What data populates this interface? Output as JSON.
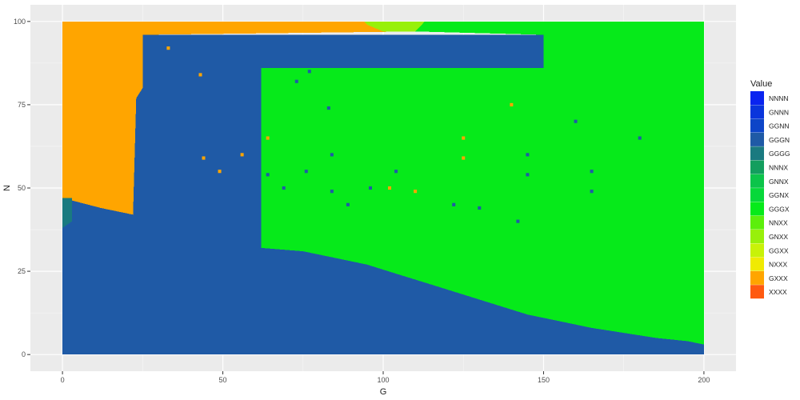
{
  "chart_data": {
    "type": "heatmap",
    "title": "",
    "xlabel": "G",
    "ylabel": "N",
    "xlim": [
      -10,
      210
    ],
    "ylim": [
      -5,
      105
    ],
    "x_ticks": [
      "0",
      "50",
      "100",
      "150",
      "200"
    ],
    "y_ticks": [
      "0",
      "25",
      "50",
      "75",
      "100"
    ],
    "grid": true,
    "legend": {
      "title": "Value",
      "position": "right",
      "entries": [
        {
          "label": "NNNN",
          "color": "#0a24f0"
        },
        {
          "label": "GNNN",
          "color": "#0a35dc"
        },
        {
          "label": "GGNN",
          "color": "#0d45c8"
        },
        {
          "label": "GGGN",
          "color": "#1f5aa6"
        },
        {
          "label": "GGGG",
          "color": "#1a7a80"
        },
        {
          "label": "NNNX",
          "color": "#139e5e"
        },
        {
          "label": "GNNX",
          "color": "#0cc44a"
        },
        {
          "label": "GGNX",
          "color": "#07d83a"
        },
        {
          "label": "GGGX",
          "color": "#06ea1a"
        },
        {
          "label": "NNXX",
          "color": "#5cef0c"
        },
        {
          "label": "GNXX",
          "color": "#98f00a"
        },
        {
          "label": "GGXX",
          "color": "#c8f208"
        },
        {
          "label": "NXXX",
          "color": "#f0ea02"
        },
        {
          "label": "GXXX",
          "color": "#ffa500"
        },
        {
          "label": "XXXX",
          "color": "#ff5a10"
        }
      ]
    },
    "regions": [
      {
        "value": "GGGN",
        "polygon": [
          [
            0,
            0
          ],
          [
            200,
            0
          ],
          [
            200,
            3
          ],
          [
            195,
            4
          ],
          [
            185,
            5
          ],
          [
            175,
            6.5
          ],
          [
            165,
            8
          ],
          [
            155,
            10
          ],
          [
            145,
            12
          ],
          [
            135,
            15
          ],
          [
            125,
            18
          ],
          [
            115,
            21
          ],
          [
            105,
            24
          ],
          [
            95,
            27
          ],
          [
            85,
            29
          ],
          [
            75,
            31
          ],
          [
            62,
            32
          ],
          [
            62,
            86
          ],
          [
            150,
            86
          ],
          [
            150,
            96
          ],
          [
            25,
            96
          ],
          [
            25,
            80
          ],
          [
            23,
            77
          ],
          [
            22,
            42
          ],
          [
            12,
            44
          ],
          [
            0,
            47
          ]
        ]
      },
      {
        "value": "GXXX",
        "polygon": [
          [
            0,
            100
          ],
          [
            95,
            100
          ],
          [
            95,
            99
          ],
          [
            110,
            97
          ],
          [
            25,
            96
          ],
          [
            25,
            80
          ],
          [
            23,
            77
          ],
          [
            22,
            42
          ],
          [
            12,
            44
          ],
          [
            0,
            47
          ]
        ]
      },
      {
        "value": "GGGX",
        "polygon": [
          [
            62,
            32
          ],
          [
            75,
            31
          ],
          [
            85,
            29
          ],
          [
            95,
            27
          ],
          [
            105,
            24
          ],
          [
            115,
            21
          ],
          [
            125,
            18
          ],
          [
            135,
            15
          ],
          [
            145,
            12
          ],
          [
            155,
            10
          ],
          [
            165,
            8
          ],
          [
            175,
            6.5
          ],
          [
            185,
            5
          ],
          [
            195,
            4
          ],
          [
            200,
            3
          ],
          [
            200,
            100
          ],
          [
            113,
            100
          ],
          [
            110,
            97
          ],
          [
            150,
            96
          ],
          [
            150,
            86
          ],
          [
            62,
            86
          ]
        ]
      },
      {
        "value": "GNXX",
        "polygon": [
          [
            94,
            100
          ],
          [
            113,
            100
          ],
          [
            110,
            97
          ],
          [
            100,
            97
          ],
          [
            95,
            99
          ]
        ]
      },
      {
        "value": "GGGG",
        "polygon": [
          [
            0,
            38
          ],
          [
            3,
            40
          ],
          [
            3,
            47
          ],
          [
            0,
            47
          ]
        ]
      }
    ],
    "point_cells": {
      "GGGN": [
        [
          73,
          82
        ],
        [
          77,
          85
        ],
        [
          83,
          74
        ],
        [
          84,
          60
        ],
        [
          76,
          55
        ],
        [
          64,
          54
        ],
        [
          69,
          50
        ],
        [
          84,
          49
        ],
        [
          89,
          45
        ],
        [
          96,
          50
        ],
        [
          104,
          55
        ],
        [
          122,
          45
        ],
        [
          130,
          44
        ],
        [
          142,
          40
        ],
        [
          145,
          60
        ],
        [
          145,
          54
        ],
        [
          160,
          70
        ],
        [
          165,
          55
        ],
        [
          165,
          49
        ],
        [
          180,
          65
        ]
      ],
      "GXXX": [
        [
          33,
          92
        ],
        [
          43,
          84
        ],
        [
          44,
          59
        ],
        [
          56,
          60
        ],
        [
          49,
          55
        ],
        [
          64,
          65
        ],
        [
          102,
          50
        ],
        [
          110,
          49
        ],
        [
          125,
          65
        ],
        [
          125,
          59
        ],
        [
          140,
          75
        ]
      ]
    }
  }
}
